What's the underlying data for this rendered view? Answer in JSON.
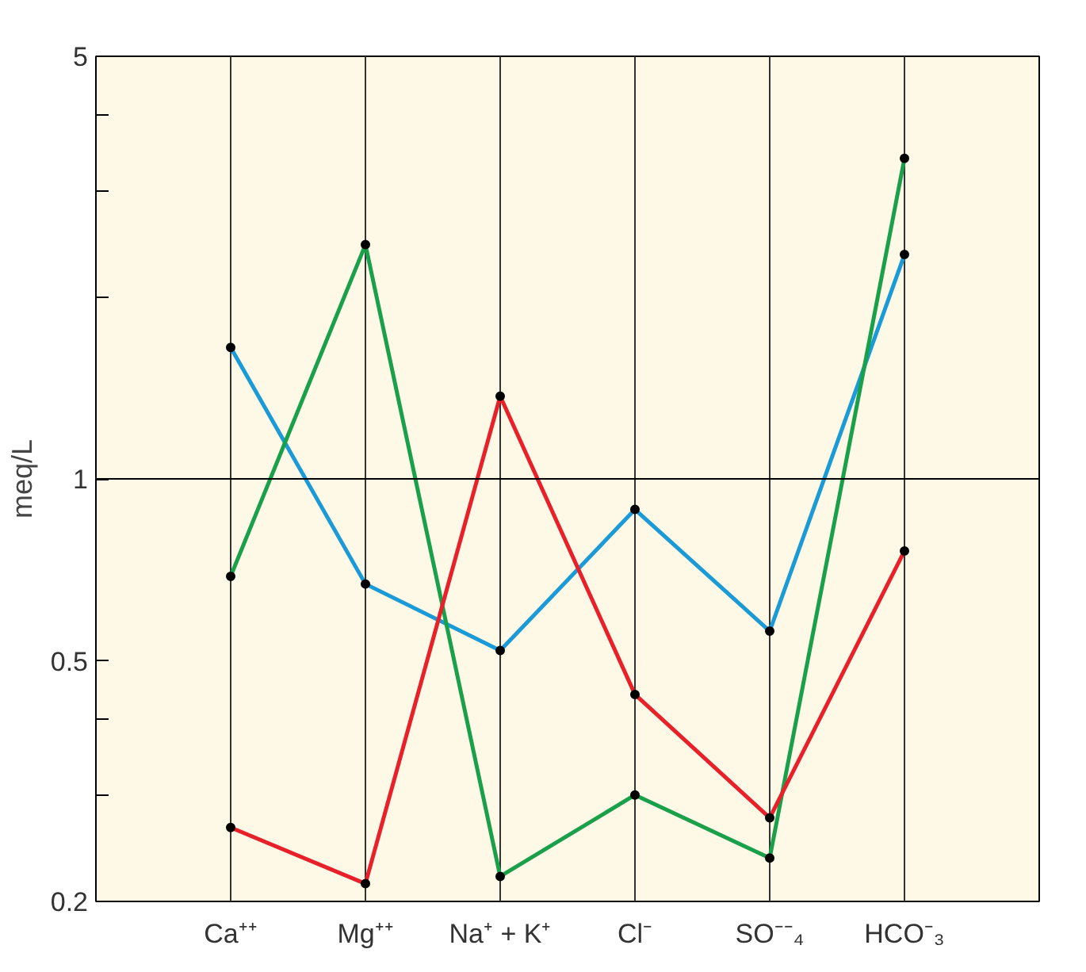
{
  "chart_data": {
    "type": "line",
    "ylabel": "meq/L",
    "categories": [
      "Ca⁺⁺",
      "Mg⁺⁺",
      "Na⁺ + K⁺",
      "Cl⁻",
      "SO⁻⁻₄",
      "HCO⁻₃"
    ],
    "series": [
      {
        "color": "#1a9ad6",
        "values": [
          1.65,
          0.67,
          0.52,
          0.89,
          0.56,
          2.35
        ]
      },
      {
        "color": "#1aa04a",
        "values": [
          0.69,
          2.44,
          0.22,
          0.3,
          0.236,
          3.39
        ]
      },
      {
        "color": "#e8202a",
        "values": [
          0.265,
          0.214,
          1.37,
          0.44,
          0.275,
          0.76
        ]
      }
    ],
    "log": "y",
    "ylim": [
      0.2,
      5
    ],
    "yticks": [
      0.2,
      {
        "value": 0.3,
        "label": null
      },
      {
        "value": 0.4,
        "label": null
      },
      0.5,
      1,
      {
        "value": 2,
        "label": null
      },
      {
        "value": 3,
        "label": null
      },
      {
        "value": 4,
        "label": null
      },
      5
    ],
    "grid": "x",
    "marker": "circle",
    "line_style": "solid",
    "ref_lines": [
      {
        "axis": "y",
        "value": 1,
        "label": null,
        "color": "#000000"
      }
    ]
  }
}
